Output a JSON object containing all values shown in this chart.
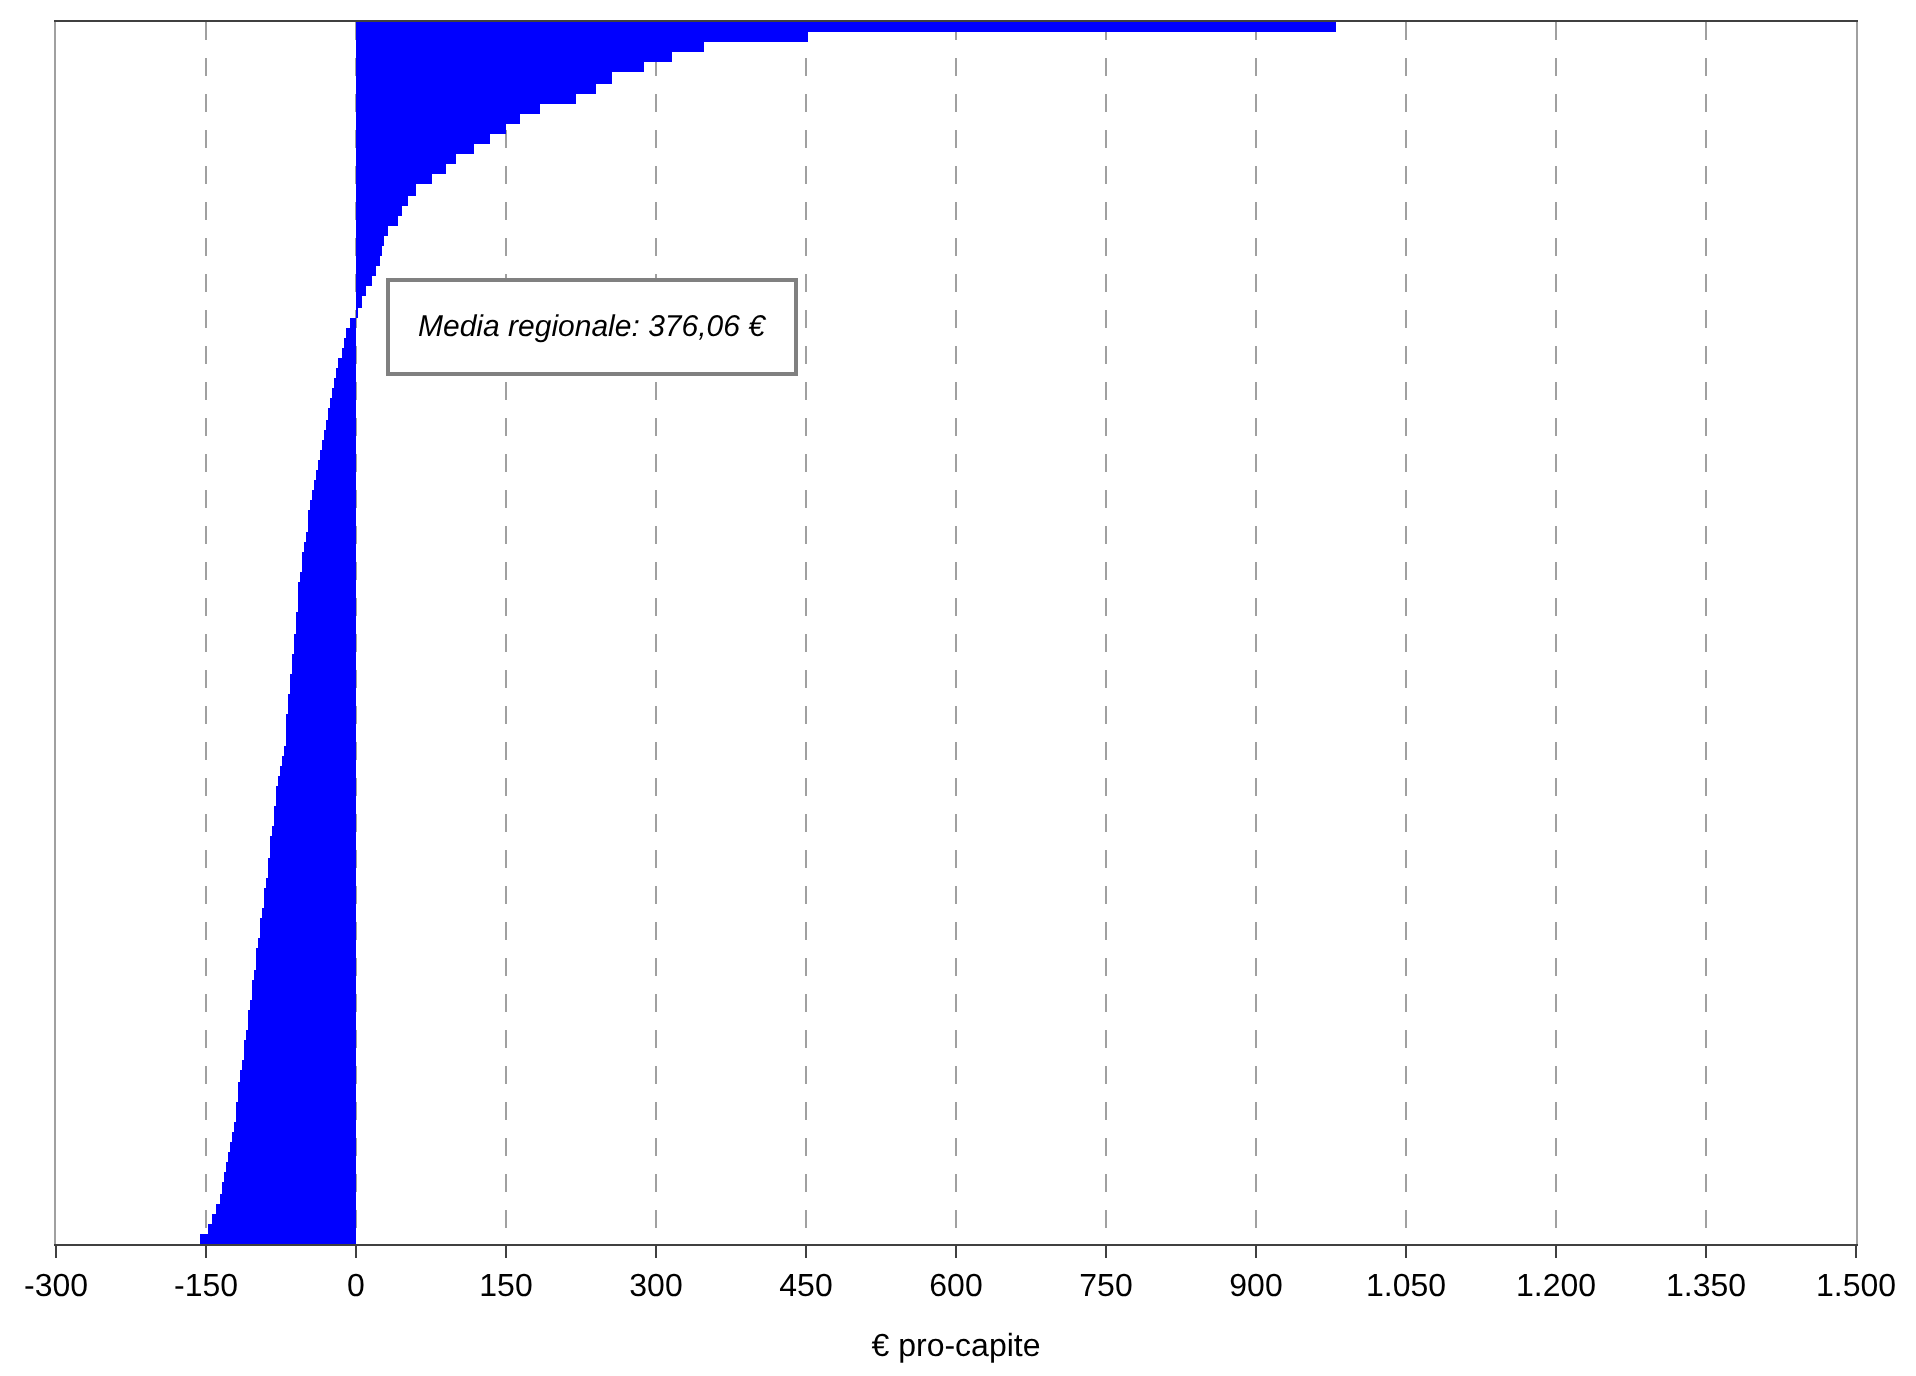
{
  "chart_data": {
    "type": "bar",
    "orientation": "horizontal",
    "xlabel": "€ pro-capite",
    "annotations": [
      "Media regionale: 376,06 €"
    ],
    "categories": [
      null,
      null,
      null,
      null,
      null,
      null,
      null,
      null,
      null,
      null,
      null,
      null,
      null,
      null,
      null,
      null,
      null,
      null,
      null,
      null,
      null,
      null,
      null,
      null,
      null,
      null,
      null,
      null,
      null,
      null,
      null,
      null,
      null,
      null,
      null,
      null,
      null,
      null,
      null,
      null,
      null,
      null,
      null,
      null,
      null,
      null,
      null,
      null,
      null,
      null,
      null,
      null,
      null,
      null,
      null,
      null,
      null,
      null,
      null,
      null,
      null,
      null,
      null,
      null,
      null,
      null,
      null,
      null,
      null,
      null,
      null,
      null,
      null,
      null,
      null,
      null,
      null,
      null,
      null,
      null,
      null,
      null,
      null,
      null,
      null,
      null,
      null,
      null,
      null,
      null,
      null,
      null,
      null,
      null,
      null,
      null,
      null,
      null,
      null,
      null,
      null,
      null,
      null,
      null,
      null,
      null,
      null,
      null,
      null,
      null,
      null,
      null,
      null,
      null,
      null,
      null,
      null,
      null,
      null,
      null
    ],
    "values": [
      980,
      452,
      348,
      316,
      288,
      256,
      240,
      220,
      184,
      164,
      150,
      134,
      118,
      100,
      90,
      76,
      60,
      52,
      46,
      42,
      32,
      28,
      26,
      24,
      20,
      16,
      10,
      6,
      2,
      -6,
      -10,
      -12,
      -15,
      -18,
      -20,
      -23,
      -25,
      -27,
      -29,
      -31,
      -33,
      -35,
      -37,
      -39,
      -41,
      -43,
      -45,
      -46,
      -48,
      -49,
      -51,
      -52,
      -54,
      -55,
      -56,
      -58,
      -58,
      -59,
      -60,
      -61,
      -62,
      -63,
      -64,
      -65,
      -66,
      -67,
      -68,
      -69,
      -70,
      -71,
      -71,
      -72,
      -74,
      -76,
      -78,
      -80,
      -80,
      -82,
      -83,
      -84,
      -86,
      -87,
      -88,
      -89,
      -90,
      -92,
      -93,
      -94,
      -96,
      -97,
      -98,
      -100,
      -101,
      -102,
      -104,
      -105,
      -106,
      -108,
      -109,
      -111,
      -112,
      -113,
      -115,
      -116,
      -118,
      -119,
      -120,
      -121,
      -122,
      -124,
      -126,
      -128,
      -130,
      -132,
      -134,
      -137,
      -140,
      -144,
      -148,
      -156
    ],
    "color": "#0000ff",
    "xlim": [
      -300,
      1500
    ],
    "xticks": [
      -300,
      -150,
      0,
      150,
      300,
      450,
      600,
      750,
      900,
      {
        "value": 1050,
        "label": "1.050"
      },
      {
        "value": 1200,
        "label": "1.200"
      },
      {
        "value": 1350,
        "label": "1.350"
      },
      {
        "value": 1500,
        "label": "1.500"
      }
    ],
    "grid": "x",
    "tick_labels": "x"
  }
}
